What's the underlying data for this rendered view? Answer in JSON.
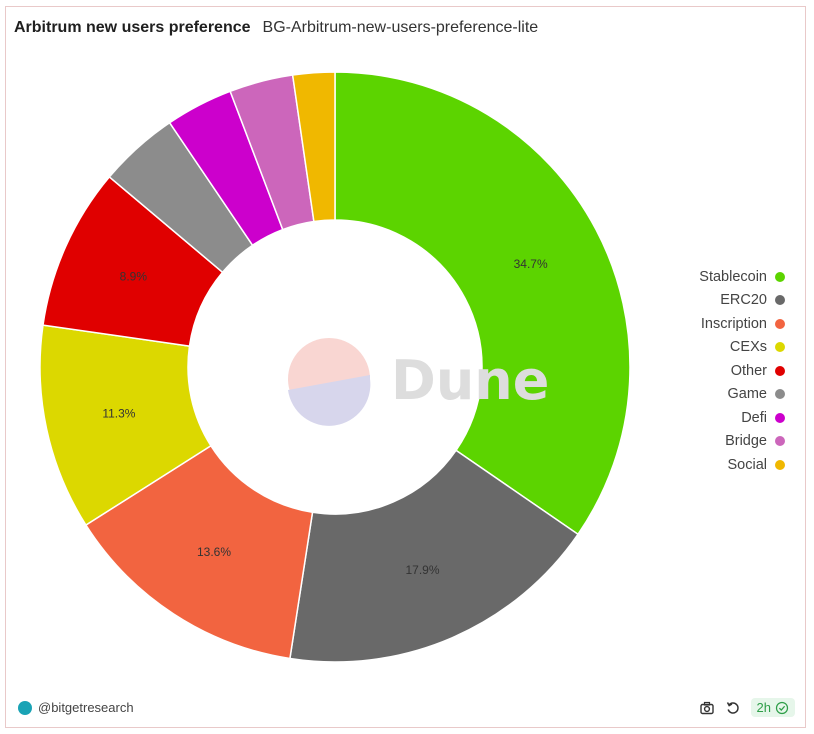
{
  "header": {
    "title": "Arbitrum new users preference",
    "subtitle": "BG-Arbitrum-new-users-preference-lite"
  },
  "watermark": {
    "text": "Dune"
  },
  "footer": {
    "handle": "@bitgetresearch",
    "age": "2h"
  },
  "chart_data": {
    "type": "pie",
    "donut": true,
    "categories": [
      "Stablecoin",
      "ERC20",
      "Inscription",
      "CEXs",
      "Other",
      "Game",
      "Defi",
      "Bridge",
      "Social"
    ],
    "values": [
      34.7,
      17.9,
      13.6,
      11.3,
      8.9,
      4.4,
      3.7,
      3.5,
      2.3
    ],
    "labels": [
      "34.7%",
      "17.9%",
      "13.6%",
      "11.3%",
      "8.9%",
      "",
      "",
      "",
      ""
    ],
    "colors": [
      "#5cd400",
      "#696969",
      "#f26440",
      "#dcd800",
      "#e00000",
      "#8c8c8c",
      "#cc00cc",
      "#cc66bb",
      "#f0b800"
    ],
    "legend_position": "right"
  }
}
